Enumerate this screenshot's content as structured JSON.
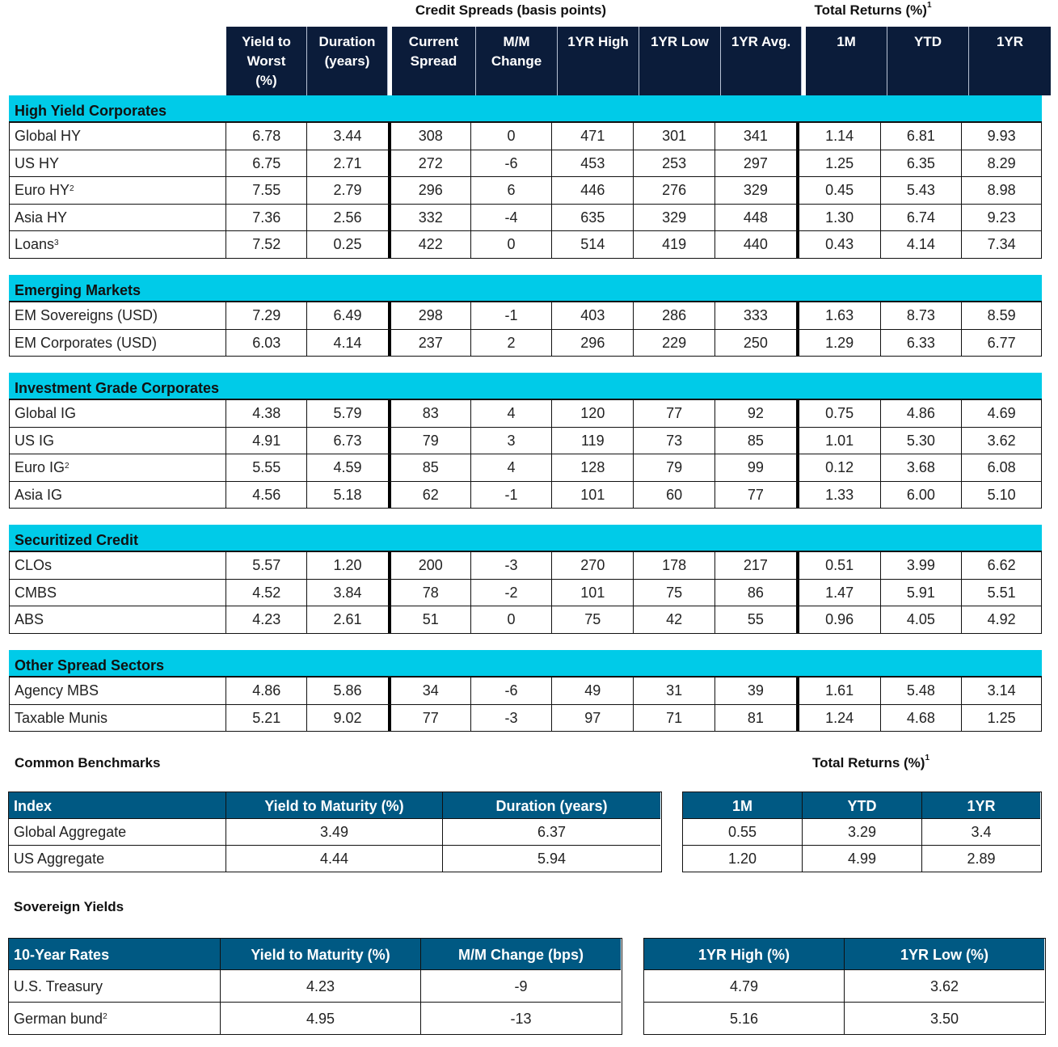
{
  "main_table": {
    "group_headers": {
      "credit_spreads": "Credit Spreads (basis points)",
      "total_returns": "Total Returns (%)",
      "total_returns_footnote": "1"
    },
    "columns": [
      {
        "label_lines": [
          "Yield to",
          "Worst",
          "(%)"
        ]
      },
      {
        "label_lines": [
          "Duration",
          "(years)"
        ]
      },
      {
        "label_lines": [
          "Current",
          "Spread"
        ]
      },
      {
        "label_lines": [
          "M/M",
          "Change"
        ]
      },
      {
        "label_lines": [
          "1YR High"
        ]
      },
      {
        "label_lines": [
          "1YR Low"
        ]
      },
      {
        "label_lines": [
          "1YR Avg."
        ]
      },
      {
        "label_lines": [
          "1M"
        ]
      },
      {
        "label_lines": [
          "YTD"
        ]
      },
      {
        "label_lines": [
          "1YR"
        ]
      }
    ],
    "sections": [
      {
        "title": "High Yield Corporates",
        "rows": [
          {
            "name": "Global HY",
            "sup": "",
            "values": [
              "6.78",
              "3.44",
              "308",
              "0",
              "471",
              "301",
              "341",
              "1.14",
              "6.81",
              "9.93"
            ]
          },
          {
            "name": "US HY",
            "sup": "",
            "values": [
              "6.75",
              "2.71",
              "272",
              "-6",
              "453",
              "253",
              "297",
              "1.25",
              "6.35",
              "8.29"
            ]
          },
          {
            "name": "Euro HY",
            "sup": "2",
            "values": [
              "7.55",
              "2.79",
              "296",
              "6",
              "446",
              "276",
              "329",
              "0.45",
              "5.43",
              "8.98"
            ]
          },
          {
            "name": "Asia HY",
            "sup": "",
            "values": [
              "7.36",
              "2.56",
              "332",
              "-4",
              "635",
              "329",
              "448",
              "1.30",
              "6.74",
              "9.23"
            ]
          },
          {
            "name": "Loans",
            "sup": "3",
            "values": [
              "7.52",
              "0.25",
              "422",
              "0",
              "514",
              "419",
              "440",
              "0.43",
              "4.14",
              "7.34"
            ]
          }
        ]
      },
      {
        "title": "Emerging Markets",
        "rows": [
          {
            "name": "EM Sovereigns (USD)",
            "sup": "",
            "values": [
              "7.29",
              "6.49",
              "298",
              "-1",
              "403",
              "286",
              "333",
              "1.63",
              "8.73",
              "8.59"
            ]
          },
          {
            "name": "EM Corporates (USD)",
            "sup": "",
            "values": [
              "6.03",
              "4.14",
              "237",
              "2",
              "296",
              "229",
              "250",
              "1.29",
              "6.33",
              "6.77"
            ]
          }
        ]
      },
      {
        "title": "Investment Grade Corporates",
        "rows": [
          {
            "name": "Global IG",
            "sup": "",
            "values": [
              "4.38",
              "5.79",
              "83",
              "4",
              "120",
              "77",
              "92",
              "0.75",
              "4.86",
              "4.69"
            ]
          },
          {
            "name": "US IG",
            "sup": "",
            "values": [
              "4.91",
              "6.73",
              "79",
              "3",
              "119",
              "73",
              "85",
              "1.01",
              "5.30",
              "3.62"
            ]
          },
          {
            "name": "Euro IG",
            "sup": "2",
            "values": [
              "5.55",
              "4.59",
              "85",
              "4",
              "128",
              "79",
              "99",
              "0.12",
              "3.68",
              "6.08"
            ]
          },
          {
            "name": "Asia IG",
            "sup": "",
            "values": [
              "4.56",
              "5.18",
              "62",
              "-1",
              "101",
              "60",
              "77",
              "1.33",
              "6.00",
              "5.10"
            ]
          }
        ]
      },
      {
        "title": "Securitized Credit",
        "rows": [
          {
            "name": "CLOs",
            "sup": "",
            "values": [
              "5.57",
              "1.20",
              "200",
              "-3",
              "270",
              "178",
              "217",
              "0.51",
              "3.99",
              "6.62"
            ]
          },
          {
            "name": "CMBS",
            "sup": "",
            "values": [
              "4.52",
              "3.84",
              "78",
              "-2",
              "101",
              "75",
              "86",
              "1.47",
              "5.91",
              "5.51"
            ]
          },
          {
            "name": "ABS",
            "sup": "",
            "values": [
              "4.23",
              "2.61",
              "51",
              "0",
              "75",
              "42",
              "55",
              "0.96",
              "4.05",
              "4.92"
            ]
          }
        ]
      },
      {
        "title": "Other Spread Sectors",
        "rows": [
          {
            "name": "Agency MBS",
            "sup": "",
            "values": [
              "4.86",
              "5.86",
              "34",
              "-6",
              "49",
              "31",
              "39",
              "1.61",
              "5.48",
              "3.14"
            ]
          },
          {
            "name": "Taxable Munis",
            "sup": "",
            "values": [
              "5.21",
              "9.02",
              "77",
              "-3",
              "97",
              "71",
              "81",
              "1.24",
              "4.68",
              "1.25"
            ]
          }
        ]
      }
    ]
  },
  "common_benchmarks": {
    "title": "Common Benchmarks",
    "returns_title": "Total Returns (%)",
    "returns_footnote": "1",
    "left_headers": [
      "Index",
      "Yield to Maturity (%)",
      "Duration (years)"
    ],
    "right_headers": [
      "1M",
      "YTD",
      "1YR"
    ],
    "rows": [
      {
        "name": "Global Aggregate",
        "sup": "",
        "left": [
          "3.49",
          "6.37"
        ],
        "right": [
          "0.55",
          "3.29",
          "3.4"
        ]
      },
      {
        "name": "US Aggregate",
        "sup": "",
        "left": [
          "4.44",
          "5.94"
        ],
        "right": [
          "1.20",
          "4.99",
          "2.89"
        ]
      }
    ]
  },
  "sovereign_yields": {
    "title": "Sovereign Yields",
    "left_headers": [
      "10-Year Rates",
      "Yield to Maturity (%)",
      "M/M Change (bps)"
    ],
    "right_headers": [
      "1YR High (%)",
      "1YR Low (%)"
    ],
    "rows": [
      {
        "name": "U.S. Treasury",
        "sup": "",
        "left": [
          "4.23",
          "-9"
        ],
        "right": [
          "4.79",
          "3.62"
        ]
      },
      {
        "name": "German bund",
        "sup": "2",
        "left": [
          "4.95",
          "-13"
        ],
        "right": [
          "5.16",
          "3.50"
        ]
      }
    ]
  },
  "colors": {
    "header_navy": "#0b1c3a",
    "section_cyan": "#00cbe8",
    "benchmark_blue": "#005983"
  }
}
